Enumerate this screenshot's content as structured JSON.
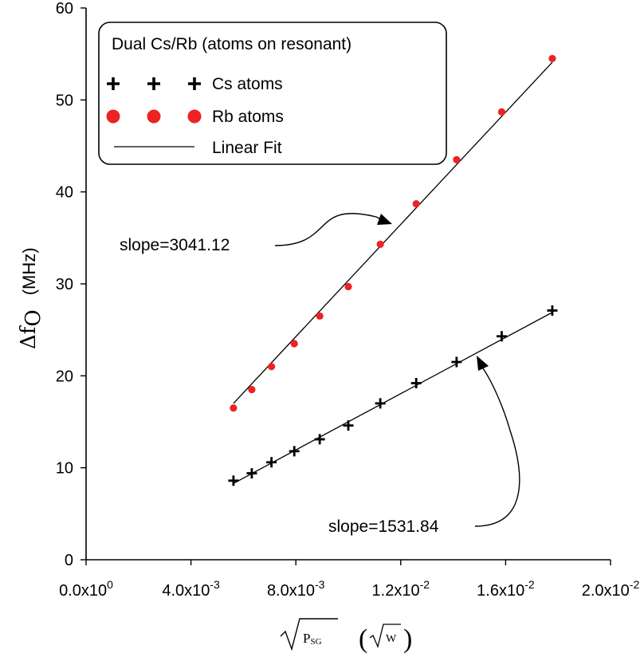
{
  "chart_data": {
    "type": "scatter",
    "title": "",
    "xlabel": "√P_SG (√W)",
    "xlabel_parts": {
      "radicand": "P",
      "radicand_sub": "SG",
      "unit_radicand": "W"
    },
    "ylabel": "Δf_O (MHz)",
    "ylabel_parts": {
      "delta": "Δf",
      "sub": "O",
      "unit": "(MHz)"
    },
    "xlim": [
      0,
      0.02
    ],
    "ylim": [
      0,
      60
    ],
    "x_ticks": [
      0,
      0.004,
      0.008,
      0.012,
      0.016,
      0.02
    ],
    "x_tick_labels": [
      {
        "mantissa": "0.0x10",
        "exp": "0"
      },
      {
        "mantissa": "4.0x10",
        "exp": "-3"
      },
      {
        "mantissa": "8.0x10",
        "exp": "-3"
      },
      {
        "mantissa": "1.2x10",
        "exp": "-2"
      },
      {
        "mantissa": "1.6x10",
        "exp": "-2"
      },
      {
        "mantissa": "2.0x10",
        "exp": "-2"
      }
    ],
    "y_ticks": [
      0,
      10,
      20,
      30,
      40,
      50,
      60
    ],
    "y_tick_labels": [
      "0",
      "10",
      "20",
      "30",
      "40",
      "50",
      "60"
    ],
    "legend": {
      "title": "Dual Cs/Rb (atoms on resonant)",
      "position": "top-left",
      "entries": [
        {
          "label": "Cs atoms",
          "marker": "plus",
          "color": "#000000"
        },
        {
          "label": "Rb atoms",
          "marker": "circle",
          "color": "#ee2222"
        },
        {
          "label": "Linear Fit",
          "marker": "line",
          "color": "#000000"
        }
      ]
    },
    "series": [
      {
        "name": "Rb atoms",
        "marker": "circle",
        "color": "#ee2222",
        "x": [
          0.00562,
          0.00632,
          0.00707,
          0.00794,
          0.00891,
          0.01,
          0.01122,
          0.01259,
          0.01413,
          0.01585,
          0.01778
        ],
        "y": [
          16.5,
          18.5,
          21.0,
          23.5,
          26.5,
          29.7,
          34.3,
          38.7,
          43.5,
          48.7,
          54.5
        ],
        "fit": {
          "x": [
            0.00562,
            0.01778
          ],
          "y": [
            17.0,
            54.1
          ]
        }
      },
      {
        "name": "Cs atoms",
        "marker": "plus",
        "color": "#000000",
        "x": [
          0.00562,
          0.00632,
          0.00707,
          0.00794,
          0.00891,
          0.01,
          0.01122,
          0.01259,
          0.01413,
          0.01585,
          0.01778
        ],
        "y": [
          8.6,
          9.4,
          10.6,
          11.8,
          13.1,
          14.6,
          17.0,
          19.2,
          21.5,
          24.3,
          27.1
        ],
        "fit": {
          "x": [
            0.00562,
            0.01778
          ],
          "y": [
            8.3,
            26.9
          ]
        }
      }
    ],
    "annotations": [
      {
        "text": "slope=3041.12",
        "target_series": "Rb atoms"
      },
      {
        "text": "slope=1531.84",
        "target_series": "Cs atoms"
      }
    ]
  }
}
